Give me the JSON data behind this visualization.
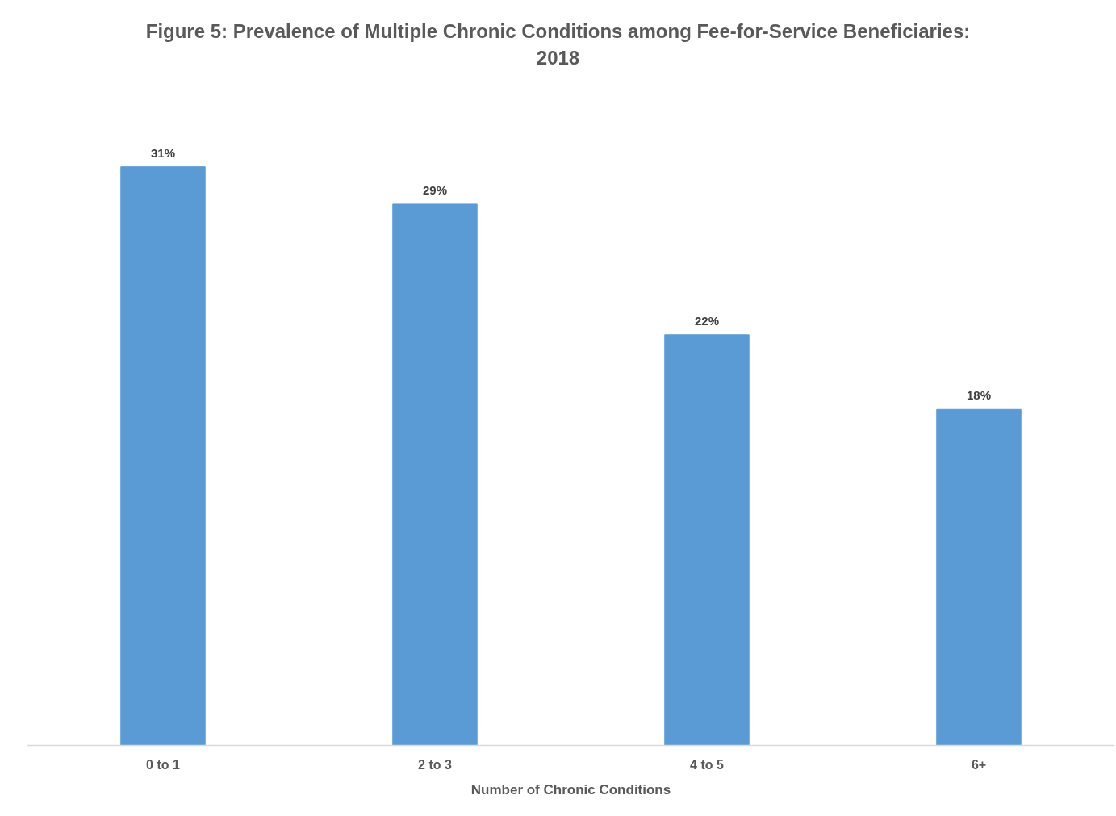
{
  "chart_data": {
    "type": "bar",
    "title": "Figure 5: Prevalence of Multiple Chronic Conditions among Fee-for-Service Beneficiaries: 2018",
    "xlabel": "Number of Chronic Conditions",
    "categories": [
      "0 to 1",
      "2 to 3",
      "4 to 5",
      "6+"
    ],
    "values": [
      31,
      29,
      22,
      18
    ],
    "color": "#5b9bd5",
    "value_labels": [
      "31%",
      "29%",
      "22%",
      "18%"
    ],
    "tick_labels": "x"
  }
}
